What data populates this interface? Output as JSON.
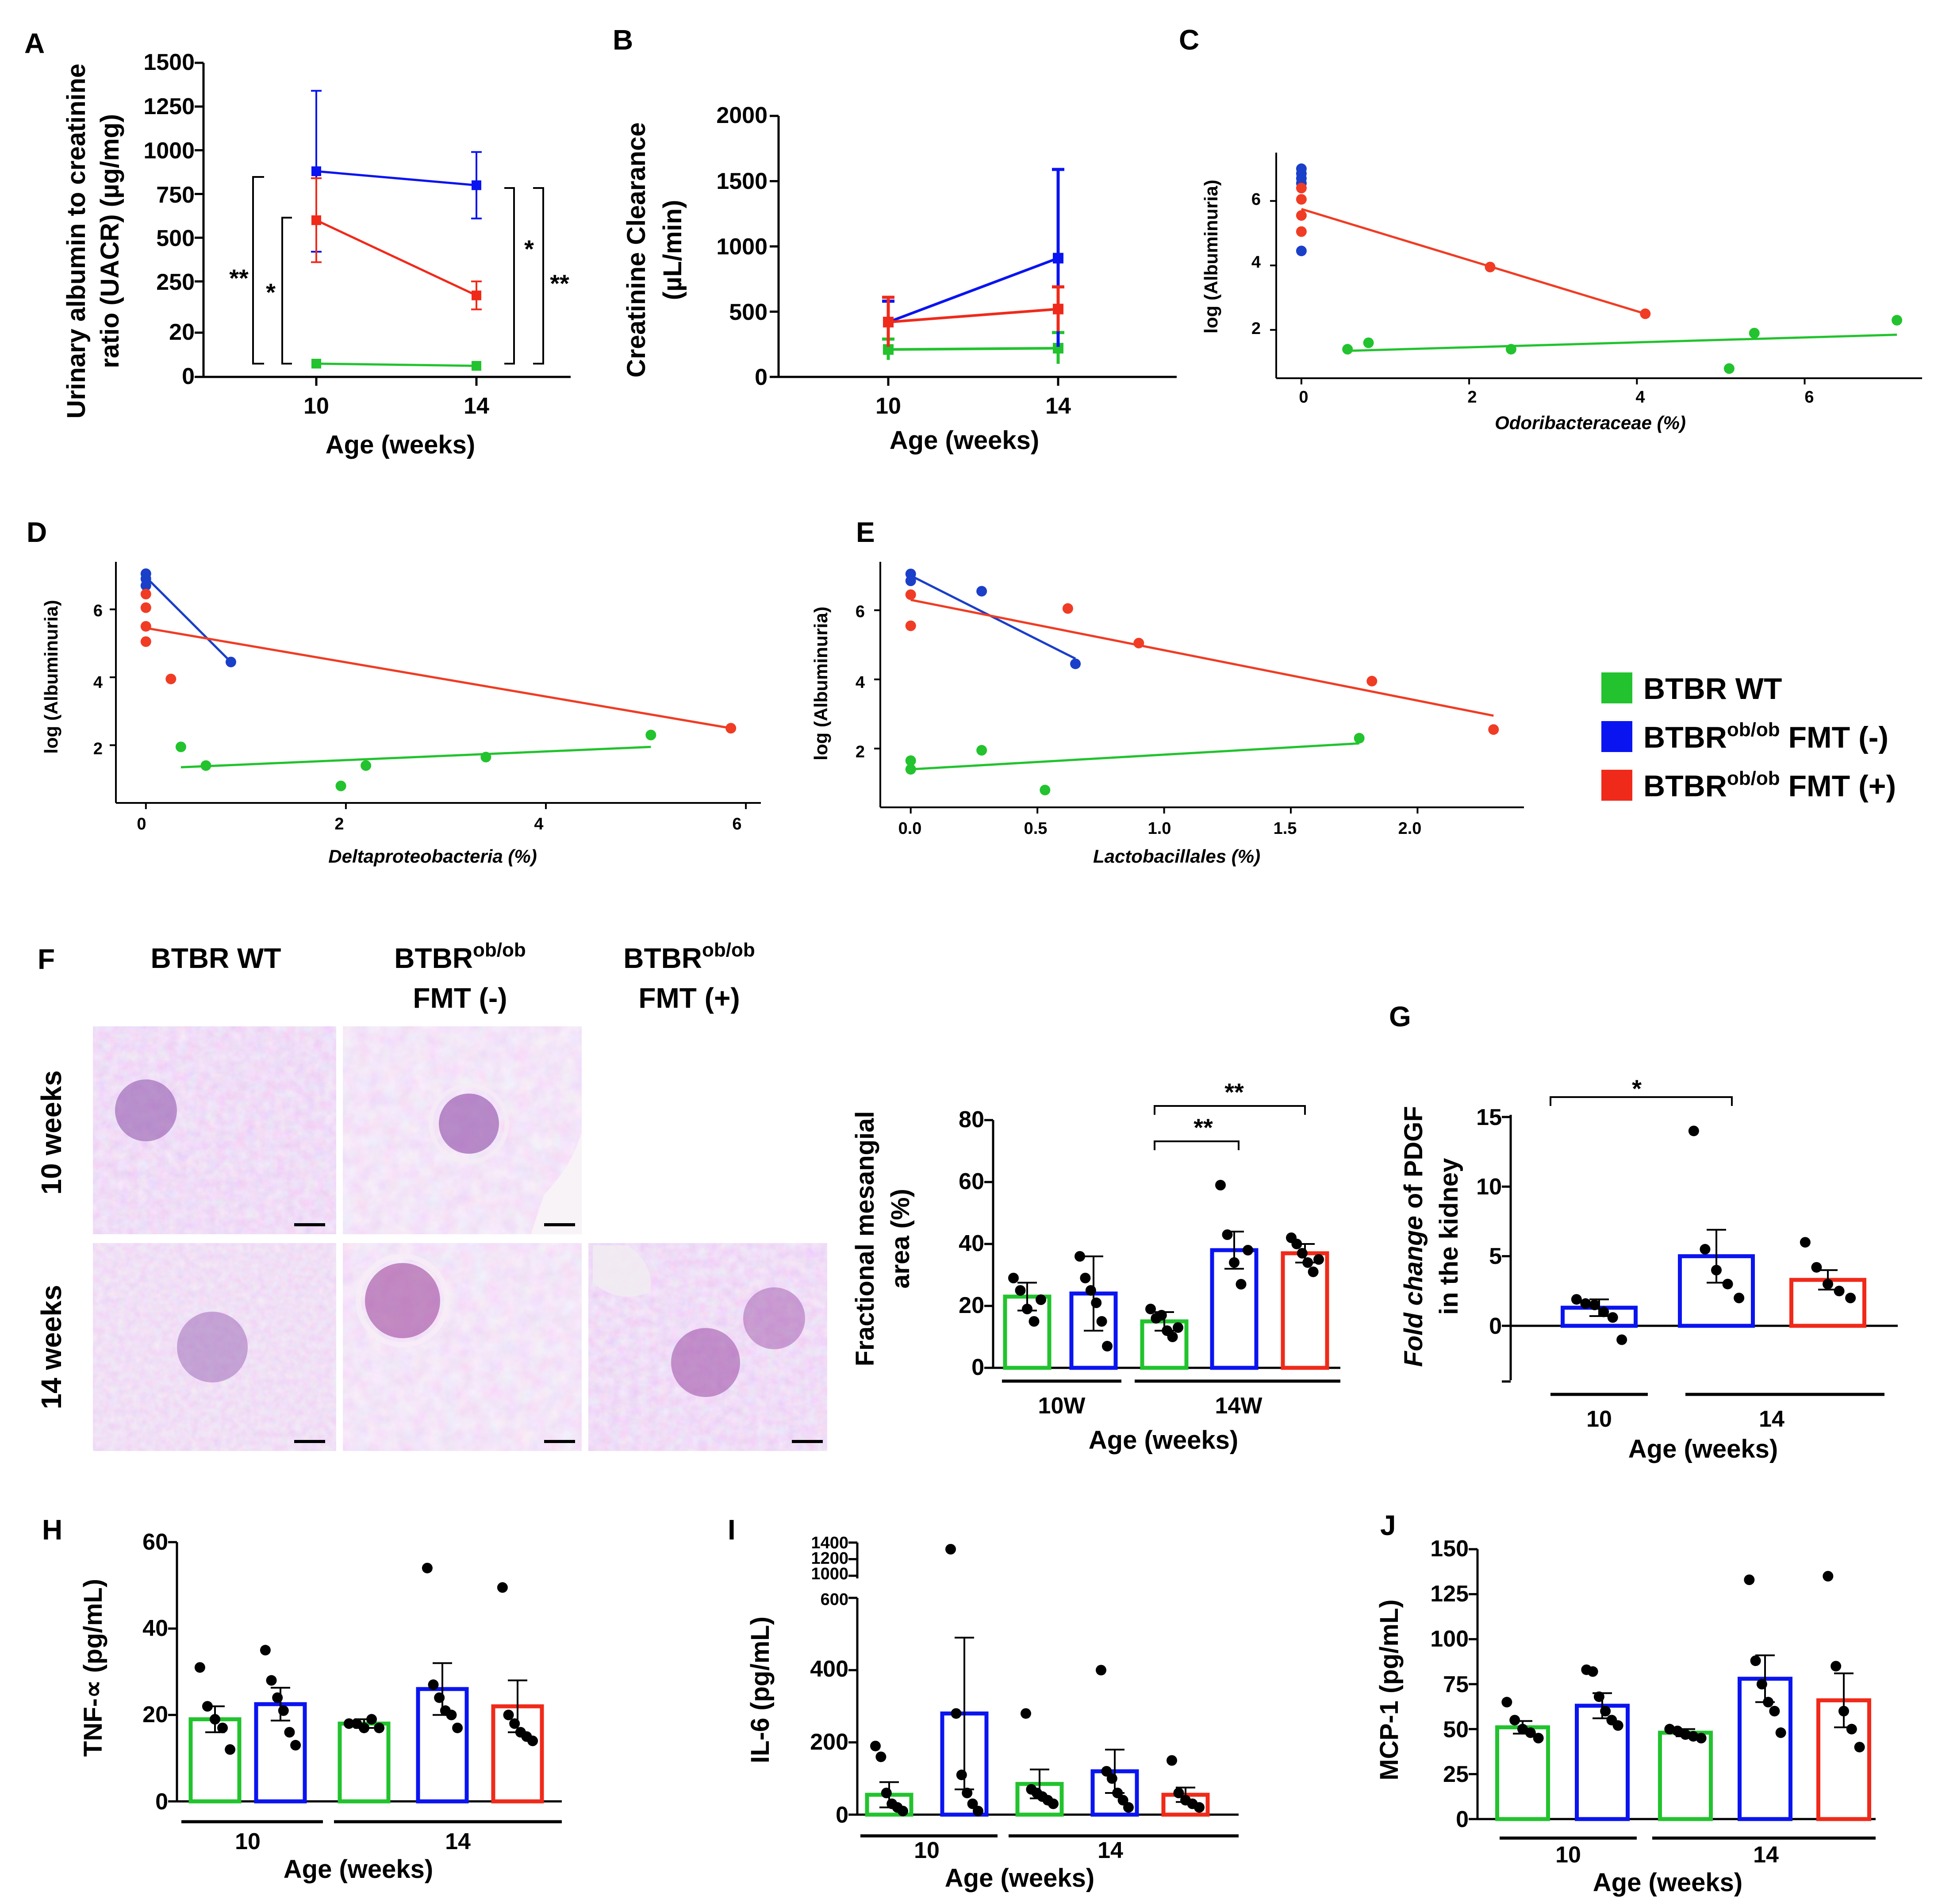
{
  "colors": {
    "wt": "#22c32e",
    "neg": "#0a14f0",
    "pos": "#f02a1a",
    "dot": "#000000",
    "neg_sc": "#1a3fc8",
    "pos_sc": "#f03c24"
  },
  "legend": [
    {
      "label_main": "BTBR WT",
      "label_sup": "",
      "label_tail": "",
      "color": "#22c32e"
    },
    {
      "label_main": "BTBR",
      "label_sup": "ob/ob",
      "label_tail": " FMT (-)",
      "color": "#0a14f0"
    },
    {
      "label_main": "BTBR",
      "label_sup": "ob/ob",
      "label_tail": " FMT (+)",
      "color": "#f02a1a"
    }
  ],
  "histology": {
    "col1": "BTBR WT",
    "col2_main": "BTBR",
    "col2_sup": "ob/ob",
    "col2_line2": "FMT (-)",
    "col3_main": "BTBR",
    "col3_sup": "ob/ob",
    "col3_line2": "FMT (+)",
    "row1": "10 weeks",
    "row2": "14 weeks"
  },
  "chart_data": [
    {
      "panel": "A",
      "type": "line",
      "ylabel": [
        "Urinary albumin to creatinine",
        "ratio (UACR) (µg/mg)"
      ],
      "xlabel": "Age (weeks)",
      "x": [
        10,
        14
      ],
      "xticks": [
        "10",
        "14"
      ],
      "yticks_upper": [
        "250",
        "500",
        "750",
        "1000",
        "1250",
        "1500"
      ],
      "yticks_lower": [
        "0",
        "20"
      ],
      "ylim_upper": [
        0,
        1500
      ],
      "ylim_lower": [
        0,
        20
      ],
      "series": [
        {
          "name": "BTBR WT",
          "color": "#22c32e",
          "values": [
            6,
            5
          ],
          "err": [
            0,
            0
          ],
          "segment": "lower"
        },
        {
          "name": "BTBR ob/ob FMT (-)",
          "color": "#0a14f0",
          "values": [
            880,
            800
          ],
          "err": [
            460,
            190
          ],
          "segment": "upper"
        },
        {
          "name": "BTBR ob/ob FMT (+)",
          "color": "#f02a1a",
          "values": [
            600,
            170
          ],
          "err": [
            240,
            80
          ],
          "segment": "upper"
        }
      ],
      "annotations": [
        "**",
        "*",
        "*",
        "**"
      ]
    },
    {
      "panel": "B",
      "type": "line",
      "ylabel": [
        "Creatinine Clearance",
        "(µL/min)"
      ],
      "xlabel": "Age (weeks)",
      "x": [
        10,
        14
      ],
      "xticks": [
        "10",
        "14"
      ],
      "yticks": [
        "0",
        "500",
        "1000",
        "1500",
        "2000"
      ],
      "ylim": [
        0,
        2000
      ],
      "series": [
        {
          "name": "BTBR WT",
          "color": "#22c32e",
          "values": [
            210,
            220
          ],
          "err": [
            80,
            120
          ]
        },
        {
          "name": "BTBR ob/ob FMT (-)",
          "color": "#0a14f0",
          "values": [
            420,
            910
          ],
          "err": [
            160,
            680
          ]
        },
        {
          "name": "BTBR ob/ob FMT (+)",
          "color": "#f02a1a",
          "values": [
            420,
            520
          ],
          "err": [
            190,
            170
          ]
        }
      ]
    },
    {
      "panel": "C",
      "type": "scatter",
      "ylabel": "log (Albuminuria)",
      "xlabel": "Odoribacteraceae (%)",
      "xticks": [
        "0",
        "2",
        "4",
        "6"
      ],
      "yticks": [
        "2",
        "4",
        "6"
      ],
      "xlim": [
        -0.3,
        7.4
      ],
      "ylim": [
        0.5,
        7.5
      ],
      "series": [
        {
          "name": "BTBR WT",
          "color": "#22c32e",
          "points": [
            [
              0.55,
              1.4
            ],
            [
              0.8,
              1.6
            ],
            [
              2.5,
              1.4
            ],
            [
              5.1,
              0.8
            ],
            [
              5.4,
              1.9
            ],
            [
              7.1,
              2.3
            ]
          ],
          "fit": [
            [
              0.55,
              1.35
            ],
            [
              7.1,
              1.85
            ]
          ]
        },
        {
          "name": "BTBR ob/ob FMT (-)",
          "color": "#1a3fc8",
          "points": [
            [
              0,
              7.0
            ],
            [
              0,
              6.85
            ],
            [
              0,
              6.7
            ],
            [
              0,
              6.55
            ],
            [
              0,
              4.45
            ]
          ],
          "fit": []
        },
        {
          "name": "BTBR ob/ob FMT (+)",
          "color": "#f03c24",
          "points": [
            [
              0,
              6.4
            ],
            [
              0,
              6.05
            ],
            [
              0,
              5.55
            ],
            [
              0,
              5.05
            ],
            [
              2.25,
              3.95
            ],
            [
              4.1,
              2.5
            ]
          ],
          "fit": [
            [
              0,
              5.75
            ],
            [
              4.1,
              2.5
            ]
          ]
        }
      ]
    },
    {
      "panel": "D",
      "type": "scatter",
      "ylabel": "log (Albuminuria)",
      "xlabel": "Deltaproteobacteria (%)",
      "xticks": [
        "0",
        "2",
        "4",
        "6"
      ],
      "yticks": [
        "2",
        "4",
        "6"
      ],
      "xlim": [
        -0.3,
        6.15
      ],
      "ylim": [
        0.3,
        7.4
      ],
      "series": [
        {
          "name": "BTBR WT",
          "color": "#22c32e",
          "points": [
            [
              0.35,
              1.95
            ],
            [
              0.6,
              1.4
            ],
            [
              1.95,
              0.8
            ],
            [
              2.2,
              1.4
            ],
            [
              3.4,
              1.65
            ],
            [
              5.05,
              2.3
            ]
          ],
          "fit": [
            [
              0.35,
              1.35
            ],
            [
              5.05,
              1.95
            ]
          ]
        },
        {
          "name": "BTBR ob/ob FMT (-)",
          "color": "#1a3fc8",
          "points": [
            [
              0,
              7.05
            ],
            [
              0,
              6.9
            ],
            [
              0,
              6.7
            ],
            [
              0.85,
              4.45
            ]
          ],
          "fit": [
            [
              0,
              6.95
            ],
            [
              0.85,
              4.45
            ]
          ]
        },
        {
          "name": "BTBR ob/ob FMT (+)",
          "color": "#f03c24",
          "points": [
            [
              0,
              6.45
            ],
            [
              0,
              6.05
            ],
            [
              0,
              5.5
            ],
            [
              0,
              5.05
            ],
            [
              0.25,
              3.95
            ],
            [
              5.85,
              2.5
            ]
          ],
          "fit": [
            [
              0,
              5.45
            ],
            [
              5.85,
              2.5
            ]
          ]
        }
      ]
    },
    {
      "panel": "E",
      "type": "scatter",
      "ylabel": "log (Albuminuria)",
      "xlabel": "Lactobacillales (%)",
      "xticks": [
        "0.0",
        "0.5",
        "1.0",
        "1.5",
        "2.0"
      ],
      "yticks": [
        "2",
        "4",
        "6"
      ],
      "xlim": [
        -0.12,
        2.42
      ],
      "ylim": [
        0.3,
        7.4
      ],
      "series": [
        {
          "name": "BTBR WT",
          "color": "#22c32e",
          "points": [
            [
              0,
              1.65
            ],
            [
              0,
              1.4
            ],
            [
              0.28,
              1.95
            ],
            [
              0.53,
              0.8
            ],
            [
              1.77,
              2.3
            ]
          ],
          "fit": [
            [
              0,
              1.4
            ],
            [
              1.77,
              2.15
            ]
          ]
        },
        {
          "name": "BTBR ob/ob FMT (-)",
          "color": "#1a3fc8",
          "points": [
            [
              0,
              7.05
            ],
            [
              0,
              6.85
            ],
            [
              0.28,
              6.55
            ],
            [
              0.65,
              4.45
            ]
          ],
          "fit": [
            [
              0,
              7.0
            ],
            [
              0.65,
              4.6
            ]
          ]
        },
        {
          "name": "BTBR ob/ob FMT (+)",
          "color": "#f03c24",
          "points": [
            [
              0,
              6.45
            ],
            [
              0,
              5.55
            ],
            [
              0.62,
              6.05
            ],
            [
              0.9,
              5.05
            ],
            [
              1.82,
              3.95
            ],
            [
              2.3,
              2.55
            ]
          ],
          "fit": [
            [
              0,
              6.3
            ],
            [
              2.3,
              2.95
            ]
          ]
        }
      ]
    },
    {
      "panel": "F",
      "type": "bar",
      "ylabel": [
        "Fractional mesangial",
        "area (%)"
      ],
      "xlabel": "Age (weeks)",
      "groups": [
        "10W",
        "14W"
      ],
      "yticks": [
        "0",
        "20",
        "40",
        "60",
        "80"
      ],
      "ylim": [
        0,
        80
      ],
      "bars": [
        {
          "group": 0,
          "color": "#22c32e",
          "mean": 23,
          "sem": 4.5,
          "points": [
            29,
            25,
            19,
            15,
            22
          ]
        },
        {
          "group": 0,
          "color": "#0a14f0",
          "mean": 24,
          "sem": 12,
          "points": [
            36,
            29,
            25,
            21,
            15,
            7
          ]
        },
        {
          "group": 1,
          "color": "#22c32e",
          "mean": 15,
          "sem": 3,
          "points": [
            19,
            16,
            17,
            12,
            10,
            13
          ]
        },
        {
          "group": 1,
          "color": "#0a14f0",
          "mean": 38,
          "sem": 6,
          "points": [
            59,
            43,
            34,
            27,
            38
          ]
        },
        {
          "group": 1,
          "color": "#f02a1a",
          "mean": 37,
          "sem": 3,
          "points": [
            42,
            40,
            37,
            34,
            31,
            35
          ]
        }
      ],
      "annotations": [
        "**",
        "**"
      ]
    },
    {
      "panel": "G",
      "type": "bar",
      "ylabel_italic": "Fold change",
      "ylabel_rest": " of PDGF",
      "ylabel2": "in the kidney",
      "xlabel": "Age (weeks)",
      "groups": [
        "10",
        "14"
      ],
      "yticks": [
        "0",
        "5",
        "10",
        "15"
      ],
      "ylim": [
        -4,
        16
      ],
      "bars": [
        {
          "group": 0,
          "color": "#0a14f0",
          "mean": 1.3,
          "sem": 0.6,
          "points": [
            1.9,
            1.6,
            1.5,
            1.0,
            0.6,
            -1.0
          ]
        },
        {
          "group": 1,
          "color": "#0a14f0",
          "mean": 5.0,
          "sem": 1.9,
          "points": [
            14.0,
            5.5,
            4.0,
            3.0,
            2.0
          ]
        },
        {
          "group": 1,
          "color": "#f02a1a",
          "mean": 3.3,
          "sem": 0.7,
          "points": [
            6.0,
            4.2,
            3.0,
            2.5,
            2.0
          ]
        }
      ],
      "annotations": [
        "*"
      ]
    },
    {
      "panel": "H",
      "type": "bar",
      "ylabel": "TNF-∝ (pg/mL)",
      "xlabel": "Age (weeks)",
      "groups": [
        "10",
        "14"
      ],
      "yticks": [
        "0",
        "20",
        "40",
        "60"
      ],
      "ylim": [
        0,
        60
      ],
      "bars": [
        {
          "group": 0,
          "color": "#22c32e",
          "mean": 19,
          "sem": 3,
          "points": [
            31,
            22,
            19,
            17,
            12
          ]
        },
        {
          "group": 0,
          "color": "#0a14f0",
          "mean": 22.5,
          "sem": 3.8,
          "points": [
            35,
            28,
            24,
            21,
            16,
            13
          ]
        },
        {
          "group": 1,
          "color": "#22c32e",
          "mean": 18,
          "sem": 1,
          "points": [
            18,
            18,
            17,
            19,
            17
          ]
        },
        {
          "group": 1,
          "color": "#0a14f0",
          "mean": 26,
          "sem": 6,
          "points": [
            54,
            27,
            24,
            21,
            20,
            17
          ]
        },
        {
          "group": 1,
          "color": "#f02a1a",
          "mean": 22,
          "sem": 6,
          "points": [
            49.5,
            20,
            18,
            16,
            15,
            14
          ]
        }
      ]
    },
    {
      "panel": "I",
      "type": "bar",
      "ylabel": "IL-6 (pg/mL)",
      "xlabel": "Age (weeks)",
      "groups": [
        "10",
        "14"
      ],
      "yticks_lower": [
        "0",
        "200",
        "400",
        "600"
      ],
      "yticks_upper": [
        "1000",
        "1200",
        "1400"
      ],
      "ylim": [
        0,
        600
      ],
      "ylim_upper": [
        1000,
        1400
      ],
      "bars": [
        {
          "group": 0,
          "color": "#22c32e",
          "mean": 55,
          "sem": 35,
          "points": [
            190,
            160,
            60,
            30,
            20,
            10
          ]
        },
        {
          "group": 0,
          "color": "#0a14f0",
          "mean": 280,
          "sem": 210,
          "points": [
            1320,
            280,
            110,
            60,
            30,
            10
          ]
        },
        {
          "group": 1,
          "color": "#22c32e",
          "mean": 85,
          "sem": 40,
          "points": [
            280,
            70,
            60,
            50,
            40,
            30
          ]
        },
        {
          "group": 1,
          "color": "#0a14f0",
          "mean": 120,
          "sem": 60,
          "points": [
            400,
            120,
            100,
            60,
            40,
            20
          ]
        },
        {
          "group": 1,
          "color": "#f02a1a",
          "mean": 55,
          "sem": 20,
          "points": [
            150,
            60,
            40,
            30,
            20
          ]
        }
      ]
    },
    {
      "panel": "J",
      "type": "bar",
      "ylabel": "MCP-1 (pg/mL)",
      "xlabel": "Age (weeks)",
      "groups": [
        "10",
        "14"
      ],
      "yticks": [
        "0",
        "25",
        "50",
        "75",
        "100",
        "125",
        "150"
      ],
      "ylim": [
        0,
        150
      ],
      "bars": [
        {
          "group": 0,
          "color": "#22c32e",
          "mean": 51,
          "sem": 3.5,
          "points": [
            65,
            55,
            50,
            48,
            45
          ]
        },
        {
          "group": 0,
          "color": "#0a14f0",
          "mean": 63,
          "sem": 7,
          "points": [
            83,
            82,
            68,
            60,
            55,
            52
          ]
        },
        {
          "group": 1,
          "color": "#22c32e",
          "mean": 48,
          "sem": 2,
          "points": [
            50,
            49,
            47,
            46,
            45
          ]
        },
        {
          "group": 1,
          "color": "#0a14f0",
          "mean": 78,
          "sem": 13,
          "points": [
            133,
            88,
            75,
            65,
            60,
            48
          ]
        },
        {
          "group": 1,
          "color": "#f02a1a",
          "mean": 66,
          "sem": 15,
          "points": [
            135,
            85,
            60,
            50,
            40
          ]
        }
      ]
    }
  ]
}
